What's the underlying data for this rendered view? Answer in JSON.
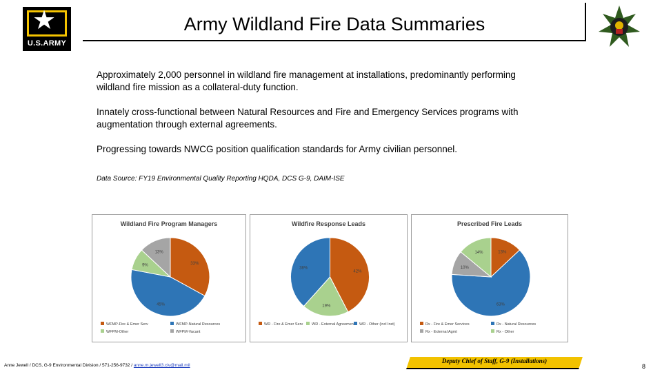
{
  "header": {
    "title": "Army Wildland Fire Data Summaries",
    "logo_text": "U.S.ARMY"
  },
  "bullets": [
    "Approximately 2,000 personnel in wildland fire management at installations, predominantly performing wildland fire mission as a collateral-duty function.",
    "Innately cross-functional between Natural Resources and Fire and Emergency Services programs with augmentation through external agreements.",
    "Progressing towards NWCG position qualification standards for Army civilian personnel."
  ],
  "source": "Data Source: FY19 Environmental Quality Reporting HQDA, DCS G-9, DAIM-ISE",
  "colors": {
    "orange": "#c55a11",
    "blue": "#2e75b6",
    "light_green": "#a9d18e",
    "gray": "#a5a5a5",
    "banner": "#f2c200"
  },
  "chart_data": [
    {
      "type": "pie",
      "title": "Wildland Fire Program Managers",
      "slices": [
        {
          "label": "WFMP-Fire & Emer Serv",
          "value": 33,
          "display": "33%",
          "color": "#c55a11"
        },
        {
          "label": "WFMP-Natural Resources",
          "value": 45,
          "display": "45%",
          "color": "#2e75b6"
        },
        {
          "label": "WFPM-Other",
          "value": 9,
          "display": "9%",
          "color": "#a9d18e"
        },
        {
          "label": "WFPM-Vacant",
          "value": 13,
          "display": "13%",
          "color": "#a5a5a5"
        }
      ]
    },
    {
      "type": "pie",
      "title": "Wildfire Response Leads",
      "slices": [
        {
          "label": "WR - Fire & Emer Serv",
          "value": 42,
          "display": "42%",
          "color": "#c55a11"
        },
        {
          "label": "WR - External Agreement",
          "value": 19,
          "display": "19%",
          "color": "#a9d18e"
        },
        {
          "label": "WR - Other (incl Inst)",
          "value": 38,
          "display": "38%",
          "color": "#2e75b6"
        }
      ]
    },
    {
      "type": "pie",
      "title": "Prescribed Fire Leads",
      "slices": [
        {
          "label": "Rx - Fire & Emer Services",
          "value": 13,
          "display": "13%",
          "color": "#c55a11"
        },
        {
          "label": "Rx - Natural Resources",
          "value": 63,
          "display": "63%",
          "color": "#2e75b6"
        },
        {
          "label": "Rx - External Agmt",
          "value": 10,
          "display": "10%",
          "color": "#a5a5a5"
        },
        {
          "label": "Rx - Other",
          "value": 14,
          "display": "14%",
          "color": "#a9d18e"
        }
      ]
    }
  ],
  "footer": {
    "contact": "Anne Jewell / DCS, G-9 Environmental Division / 571-256-9732 / ",
    "email": "anne.m.jewell3.civ@mail.mil",
    "banner": "Deputy Chief of Staff, G-9 (Installations)",
    "page": "8"
  }
}
